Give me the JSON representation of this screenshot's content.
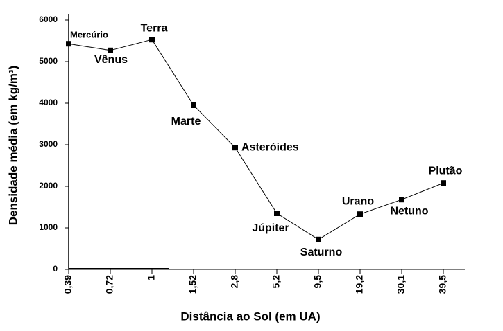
{
  "chart_data": {
    "type": "line",
    "xlabel": "Distância ao Sol (em UA)",
    "ylabel": "Densidade média (em kg/m³)",
    "categories": [
      "0,39",
      "0,72",
      "1",
      "1,52",
      "2,8",
      "5,2",
      "9,5",
      "19,2",
      "30,1",
      "39,5"
    ],
    "point_labels": [
      "Mercúrio",
      "Vênus",
      "Terra",
      "Marte",
      "Asteróides",
      "Júpiter",
      "Saturno",
      "Urano",
      "Netuno",
      "Plutão"
    ],
    "values": [
      5430,
      5270,
      5530,
      3950,
      2930,
      1350,
      720,
      1330,
      1680,
      2080
    ],
    "color": "#000000",
    "ylim": [
      0,
      6000
    ],
    "yticks": [
      0,
      1000,
      2000,
      3000,
      4000,
      5000,
      6000
    ]
  }
}
